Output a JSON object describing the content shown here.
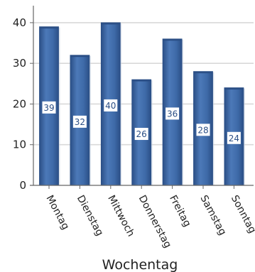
{
  "chart_data": {
    "type": "bar",
    "categories": [
      "Montag",
      "Dienstag",
      "Mittwoch",
      "Donnerstag",
      "Freitag",
      "Samstag",
      "Sonntag"
    ],
    "values": [
      39,
      32,
      40,
      26,
      36,
      28,
      24
    ],
    "data_labels": [
      "39",
      "32",
      "40",
      "26",
      "36",
      "28",
      "24"
    ],
    "xlabel": "Wochentag",
    "ylabel": "",
    "ylim": [
      0,
      44
    ],
    "yticks": [
      "0",
      "10",
      "20",
      "30",
      "40"
    ],
    "grid": true,
    "legend": "none",
    "colors": {
      "bar": "#3e6aa8",
      "bar_dark": "#2b4f86",
      "bar_light": "#6b93cf",
      "grid": "#d9d9d9",
      "axis": "#666666"
    }
  }
}
